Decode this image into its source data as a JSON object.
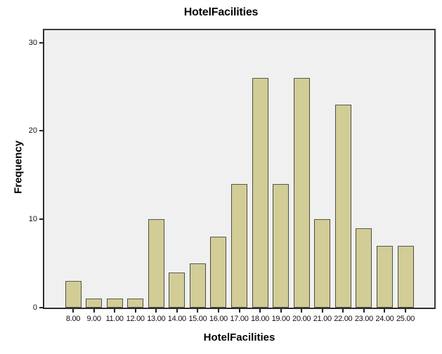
{
  "chart_data": {
    "type": "bar",
    "title": "HotelFacilities",
    "xlabel": "HotelFacilities",
    "ylabel": "Frequency",
    "categories": [
      "8.00",
      "9.00",
      "11.00",
      "12.00",
      "13.00",
      "14.00",
      "15.00",
      "16.00",
      "17.00",
      "18.00",
      "19.00",
      "20.00",
      "21.00",
      "22.00",
      "23.00",
      "24.00",
      "25.00"
    ],
    "values": [
      3,
      1,
      1,
      1,
      10,
      4,
      5,
      8,
      14,
      26,
      14,
      26,
      10,
      23,
      9,
      7,
      7
    ],
    "yticks": [
      0,
      10,
      20,
      30
    ],
    "ylim": [
      0,
      31.4
    ],
    "grid": false,
    "legend_position": "none",
    "colors": {
      "bar_fill": "#d2cd96",
      "bar_border": "#4f4e44",
      "plot_background": "#f0f0f0",
      "axis": "#2e2e2e",
      "text": "#000000"
    }
  }
}
